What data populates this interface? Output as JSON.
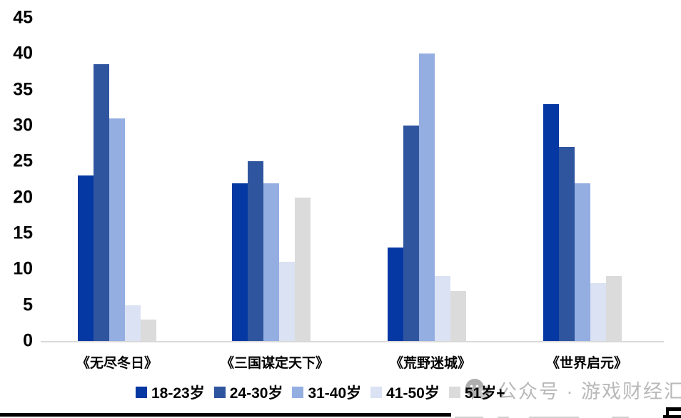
{
  "chart_data": {
    "type": "bar",
    "title": "",
    "xlabel": "",
    "ylabel": "",
    "ylim": [
      0,
      45
    ],
    "y_ticks": [
      0,
      5,
      10,
      15,
      20,
      25,
      30,
      35,
      40,
      45
    ],
    "grid": false,
    "legend_position": "bottom",
    "categories": [
      "《无尽冬日》",
      "《三国谋定天下》",
      "《荒野迷城》",
      "《世界启元》"
    ],
    "series": [
      {
        "name": "18-23岁",
        "color": "#0538A2",
        "values": [
          23,
          22,
          13,
          33
        ]
      },
      {
        "name": "24-30岁",
        "color": "#30559F",
        "values": [
          38.5,
          25,
          30,
          27
        ]
      },
      {
        "name": "31-40岁",
        "color": "#94AEE2",
        "values": [
          31,
          22,
          40,
          22
        ]
      },
      {
        "name": "41-50岁",
        "color": "#DAE2F3",
        "values": [
          5,
          11,
          9,
          8
        ]
      },
      {
        "name": "51岁+",
        "color": "#DBDBDB",
        "values": [
          3,
          20,
          7,
          9
        ]
      }
    ]
  },
  "watermark": {
    "text": "公众号 · 游戏财经汇",
    "icon": "wechat-icon",
    "color": "#b9b9b9"
  },
  "layout_colors": {
    "axis_line": "#d9d9d9",
    "background": "#ffffff"
  }
}
